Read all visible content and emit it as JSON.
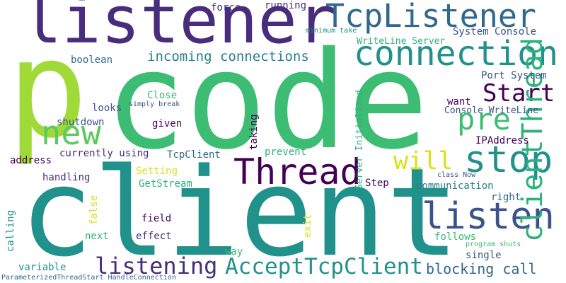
{
  "image": {
    "type": "word-cloud",
    "background": "#ffffff",
    "palette": {
      "dark_purple": "#472d7b",
      "deep_purple": "#440154",
      "indigo": "#3b528b",
      "blue": "#31688e",
      "teal": "#277f8e",
      "sea_green": "#21918c",
      "green": "#2db27d",
      "mid_green": "#3dbc74",
      "lime": "#5ec962",
      "yellow_green": "#84d44b",
      "light_green": "#a0da39",
      "yellow": "#d8e219"
    }
  },
  "words": [
    {
      "text": "code"
    },
    {
      "text": "client"
    },
    {
      "text": "listener"
    },
    {
      "text": "p"
    },
    {
      "text": "TcpListener"
    },
    {
      "text": "connection"
    },
    {
      "text": "Thread"
    },
    {
      "text": "stop"
    },
    {
      "text": "listen"
    },
    {
      "text": "Start"
    },
    {
      "text": "new"
    },
    {
      "text": "pre"
    },
    {
      "text": "clientThread"
    },
    {
      "text": "will"
    },
    {
      "text": "AcceptTcpClient"
    },
    {
      "text": "listening"
    },
    {
      "text": "blocking call"
    },
    {
      "text": "incoming connections"
    },
    {
      "text": "force"
    },
    {
      "text": "running"
    },
    {
      "text": "minimum take"
    },
    {
      "text": "System Console"
    },
    {
      "text": "WriteLine Server"
    },
    {
      "text": "boolean"
    },
    {
      "text": "Port System"
    },
    {
      "text": "Server Initialized"
    },
    {
      "text": "Close"
    },
    {
      "text": "simply break"
    },
    {
      "text": "looks"
    },
    {
      "text": "want"
    },
    {
      "text": "Console WriteLine"
    },
    {
      "text": "shutdown"
    },
    {
      "text": "given"
    },
    {
      "text": "taking"
    },
    {
      "text": "IPAddress"
    },
    {
      "text": "currently using"
    },
    {
      "text": "address"
    },
    {
      "text": "TcpClient"
    },
    {
      "text": "prevent"
    },
    {
      "text": "Setting"
    },
    {
      "text": "handling"
    },
    {
      "text": "GetStream"
    },
    {
      "text": "Step"
    },
    {
      "text": "class Now"
    },
    {
      "text": "communication"
    },
    {
      "text": "right"
    },
    {
      "text": "false"
    },
    {
      "text": "calling"
    },
    {
      "text": "field"
    },
    {
      "text": "exit"
    },
    {
      "text": "next"
    },
    {
      "text": "effect"
    },
    {
      "text": "follows"
    },
    {
      "text": "program shuts"
    },
    {
      "text": "single"
    },
    {
      "text": "way"
    },
    {
      "text": "variable"
    },
    {
      "text": "ParameterizedThreadStart HandleConnection"
    }
  ]
}
